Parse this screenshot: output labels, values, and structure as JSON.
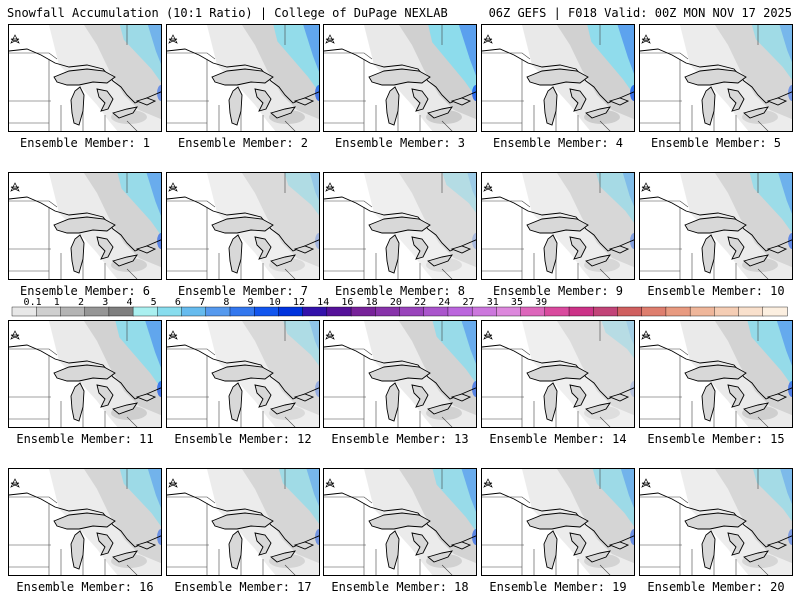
{
  "header": {
    "left_title": "Snowfall Accumulation (10:1 Ratio) | College of DuPage NEXLAB",
    "right_title": "06Z GEFS | F018 Valid: 00Z MON NOV 17 2025"
  },
  "panel_label_prefix": "Ensemble Member: ",
  "members": [
    {
      "id": "1",
      "label": "Ensemble Member: 1",
      "intensity": 0.6
    },
    {
      "id": "2",
      "label": "Ensemble Member: 2",
      "intensity": 0.8
    },
    {
      "id": "3",
      "label": "Ensemble Member: 3",
      "intensity": 0.9
    },
    {
      "id": "4",
      "label": "Ensemble Member: 4",
      "intensity": 0.85
    },
    {
      "id": "5",
      "label": "Ensemble Member: 5",
      "intensity": 0.55
    },
    {
      "id": "6",
      "label": "Ensemble Member: 6",
      "intensity": 0.7
    },
    {
      "id": "7",
      "label": "Ensemble Member: 7",
      "intensity": 0.3
    },
    {
      "id": "8",
      "label": "Ensemble Member: 8",
      "intensity": 0.25
    },
    {
      "id": "9",
      "label": "Ensemble Member: 9",
      "intensity": 0.45
    },
    {
      "id": "10",
      "label": "Ensemble Member: 10",
      "intensity": 0.65
    },
    {
      "id": "11",
      "label": "Ensemble Member: 11",
      "intensity": 0.8
    },
    {
      "id": "12",
      "label": "Ensemble Member: 12",
      "intensity": 0.35
    },
    {
      "id": "13",
      "label": "Ensemble Member: 13",
      "intensity": 0.7
    },
    {
      "id": "14",
      "label": "Ensemble Member: 14",
      "intensity": 0.2
    },
    {
      "id": "15",
      "label": "Ensemble Member: 15",
      "intensity": 0.75
    },
    {
      "id": "16",
      "label": "Ensemble Member: 16",
      "intensity": 0.6
    },
    {
      "id": "17",
      "label": "Ensemble Member: 17",
      "intensity": 0.55
    },
    {
      "id": "18",
      "label": "Ensemble Member: 18",
      "intensity": 0.7
    },
    {
      "id": "19",
      "label": "Ensemble Member: 19",
      "intensity": 0.6
    },
    {
      "id": "20",
      "label": "Ensemble Member: 20",
      "intensity": 0.5
    }
  ],
  "colorbar": {
    "tick_labels": [
      "0.1",
      "1",
      "2",
      "3",
      "4",
      "5",
      "6",
      "7",
      "8",
      "9",
      "10",
      "12",
      "14",
      "16",
      "18",
      "20",
      "22",
      "24",
      "27",
      "31",
      "35",
      "39"
    ],
    "colors": [
      "#e8e8e8",
      "#cfcfcf",
      "#b4b4b4",
      "#969696",
      "#7f7f7f",
      "#aaf0f0",
      "#88ddee",
      "#66bbee",
      "#5599ee",
      "#3377ee",
      "#1155ee",
      "#0033dd",
      "#3311aa",
      "#551199",
      "#772299",
      "#8833aa",
      "#9944bb",
      "#aa55cc",
      "#bb66dd",
      "#cc77dd",
      "#dd88dd",
      "#dd66bb",
      "#d94a9e",
      "#cc3388",
      "#c24478",
      "#d06060",
      "#de7e6e",
      "#e89a80",
      "#efb69a",
      "#f5cdb4",
      "#f9e0cc",
      "#fcefe0"
    ]
  }
}
